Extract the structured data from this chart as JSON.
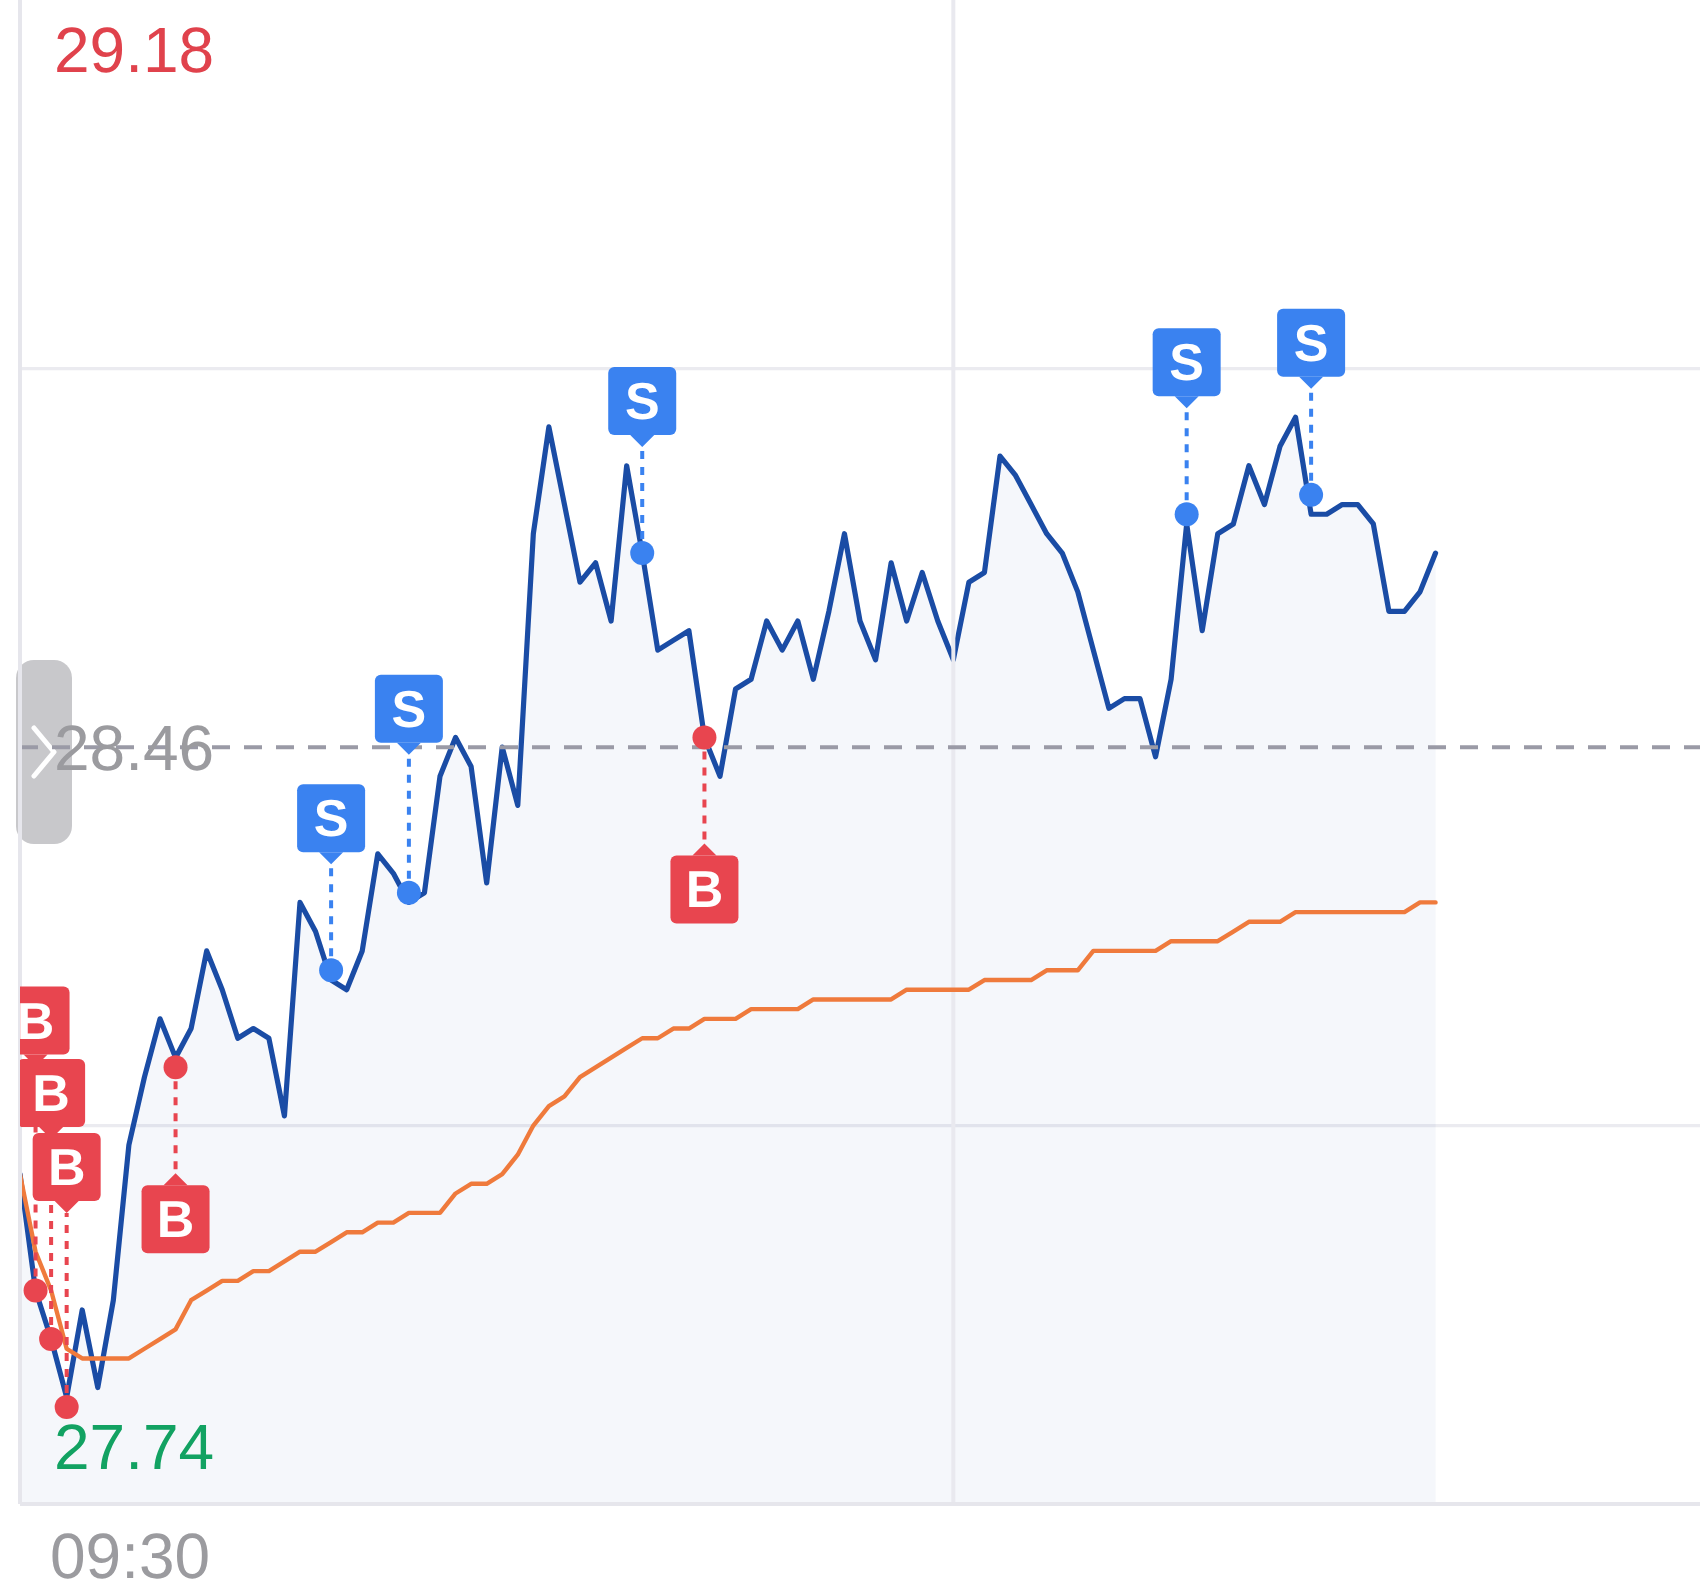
{
  "chart_data": {
    "type": "area",
    "categories": [
      null,
      null,
      null,
      null,
      null,
      null,
      null,
      null,
      null,
      null,
      null,
      null,
      null,
      null,
      null,
      null,
      null,
      null,
      null,
      null,
      null,
      null,
      null,
      null,
      null,
      null,
      null,
      null,
      null,
      null,
      null,
      null,
      null,
      null,
      null,
      null,
      null,
      null,
      null,
      null,
      null,
      null,
      null,
      null,
      null,
      null,
      null,
      null,
      null,
      null,
      null,
      null,
      null,
      null,
      null,
      null,
      null,
      null,
      null,
      null,
      null,
      null,
      null,
      null,
      null,
      null,
      null,
      null,
      null,
      null,
      null,
      null,
      null,
      null,
      null,
      null,
      null,
      null,
      null,
      null,
      null,
      null,
      null,
      null,
      null,
      null,
      null,
      null,
      null,
      null,
      null,
      null
    ],
    "ylim": [
      27.68,
      29.23
    ],
    "yticks": [
      27.74,
      {
        "value": 28.07,
        "label": null
      },
      28.46,
      {
        "value": 28.85,
        "label": null
      },
      29.18
    ],
    "grid": "y",
    "ref_lines": [
      {
        "axis": "y",
        "value": 28.46,
        "color": "#9a9aa6",
        "line_style": "dashed"
      }
    ],
    "annotations": [
      "09:30"
    ],
    "series": [
      {
        "color": "#1a4ca5",
        "values": [
          28.02,
          27.9,
          27.85,
          27.79,
          27.88,
          27.8,
          27.89,
          28.05,
          28.12,
          28.18,
          28.14,
          28.17,
          28.25,
          28.21,
          28.16,
          28.17,
          28.16,
          28.08,
          28.3,
          28.27,
          28.22,
          28.21,
          28.25,
          28.35,
          28.33,
          28.3,
          28.31,
          28.43,
          28.47,
          28.44,
          28.32,
          28.46,
          28.4,
          28.68,
          28.79,
          28.71,
          28.63,
          28.65,
          28.59,
          28.75,
          28.66,
          28.56,
          28.57,
          28.58,
          28.47,
          28.43,
          28.52,
          28.53,
          28.59,
          28.56,
          28.59,
          28.53,
          28.6,
          28.68,
          28.59,
          28.55,
          28.65,
          28.59,
          28.64,
          28.59,
          28.55,
          28.63,
          28.64,
          28.76,
          28.74,
          28.71,
          28.68,
          28.66,
          28.62,
          28.56,
          28.5,
          28.51,
          28.51,
          28.45,
          28.53,
          28.69,
          28.58,
          28.68,
          28.69,
          28.75,
          28.71,
          28.77,
          28.8,
          28.7,
          28.7,
          28.71,
          28.71,
          28.69,
          28.6,
          28.6,
          28.62,
          28.66
        ]
      },
      {
        "type": "line",
        "color": "#ef7a3c",
        "values": [
          28.02,
          27.94,
          27.9,
          27.84,
          27.83,
          27.83,
          27.83,
          27.83,
          27.84,
          27.85,
          27.86,
          27.89,
          27.9,
          27.91,
          27.91,
          27.92,
          27.92,
          27.93,
          27.94,
          27.94,
          27.95,
          27.96,
          27.96,
          27.97,
          27.97,
          27.98,
          27.98,
          27.98,
          28.0,
          28.01,
          28.01,
          28.02,
          28.04,
          28.07,
          28.09,
          28.1,
          28.12,
          28.13,
          28.14,
          28.15,
          28.16,
          28.16,
          28.17,
          28.17,
          28.18,
          28.18,
          28.18,
          28.19,
          28.19,
          28.19,
          28.19,
          28.2,
          28.2,
          28.2,
          28.2,
          28.2,
          28.2,
          28.21,
          28.21,
          28.21,
          28.21,
          28.21,
          28.22,
          28.22,
          28.22,
          28.22,
          28.23,
          28.23,
          28.23,
          28.25,
          28.25,
          28.25,
          28.25,
          28.25,
          28.26,
          28.26,
          28.26,
          28.26,
          28.27,
          28.28,
          28.28,
          28.28,
          28.29,
          28.29,
          28.29,
          28.29,
          28.29,
          28.29,
          28.29,
          28.29,
          28.3,
          28.3
        ]
      },
      {
        "type": "scatter",
        "color": "#3a82f0",
        "marker": "circle",
        "values": [
          null,
          null,
          null,
          null,
          null,
          null,
          null,
          null,
          null,
          null,
          null,
          null,
          null,
          null,
          null,
          null,
          null,
          null,
          null,
          null,
          28.23,
          null,
          null,
          null,
          null,
          28.31,
          null,
          null,
          null,
          null,
          null,
          null,
          null,
          null,
          null,
          null,
          null,
          null,
          null,
          null,
          28.66,
          null,
          null,
          null,
          null,
          null,
          null,
          null,
          null,
          null,
          null,
          null,
          null,
          null,
          null,
          null,
          null,
          null,
          null,
          null,
          null,
          null,
          null,
          null,
          null,
          null,
          null,
          null,
          null,
          null,
          null,
          null,
          null,
          null,
          null,
          28.7,
          null,
          null,
          null,
          null,
          null,
          null,
          null,
          28.72,
          null,
          null,
          null,
          null,
          null,
          null,
          null,
          null
        ],
        "value_labels": [
          null,
          null,
          null,
          null,
          null,
          null,
          null,
          null,
          null,
          null,
          null,
          null,
          null,
          null,
          null,
          null,
          null,
          null,
          null,
          null,
          "S",
          null,
          null,
          null,
          null,
          "S",
          null,
          null,
          null,
          null,
          null,
          null,
          null,
          null,
          null,
          null,
          null,
          null,
          null,
          null,
          "S",
          null,
          null,
          null,
          null,
          null,
          null,
          null,
          null,
          null,
          null,
          null,
          null,
          null,
          null,
          null,
          null,
          null,
          null,
          null,
          null,
          null,
          null,
          null,
          null,
          null,
          null,
          null,
          null,
          null,
          null,
          null,
          null,
          null,
          null,
          "S",
          null,
          null,
          null,
          null,
          null,
          null,
          null,
          "S",
          null,
          null,
          null,
          null,
          null,
          null,
          null,
          null
        ]
      },
      {
        "type": "scatter",
        "color": "#e8454f",
        "marker": "circle",
        "values": [
          null,
          27.9,
          27.85,
          27.78,
          null,
          null,
          null,
          null,
          null,
          null,
          28.13,
          null,
          null,
          null,
          null,
          null,
          null,
          null,
          null,
          null,
          null,
          null,
          null,
          null,
          null,
          null,
          null,
          null,
          null,
          null,
          null,
          null,
          null,
          null,
          null,
          null,
          null,
          null,
          null,
          null,
          null,
          null,
          null,
          null,
          28.47,
          null,
          null,
          null,
          null,
          null,
          null,
          null,
          null,
          null,
          null,
          null,
          null,
          null,
          null,
          null,
          null,
          null,
          null,
          null,
          null,
          null,
          null,
          null,
          null,
          null,
          null,
          null,
          null,
          null,
          null,
          null,
          null,
          null,
          null,
          null,
          null,
          null,
          null,
          null,
          null,
          null,
          null,
          null,
          null,
          null,
          null,
          null
        ],
        "value_labels": [
          null,
          "B",
          "B",
          "B",
          null,
          null,
          null,
          null,
          null,
          null,
          "B",
          null,
          null,
          null,
          null,
          null,
          null,
          null,
          null,
          null,
          null,
          null,
          null,
          null,
          null,
          null,
          null,
          null,
          null,
          null,
          null,
          null,
          null,
          null,
          null,
          null,
          null,
          null,
          null,
          null,
          null,
          null,
          null,
          null,
          "B",
          null,
          null,
          null,
          null,
          null,
          null,
          null,
          null,
          null,
          null,
          null,
          null,
          null,
          null,
          null,
          null,
          null,
          null,
          null,
          null,
          null,
          null,
          null,
          null,
          null,
          null,
          null,
          null,
          null,
          null,
          null,
          null,
          null,
          null,
          null,
          null,
          null,
          null,
          null,
          null,
          null,
          null,
          null,
          null,
          null,
          null,
          null
        ]
      }
    ]
  }
}
